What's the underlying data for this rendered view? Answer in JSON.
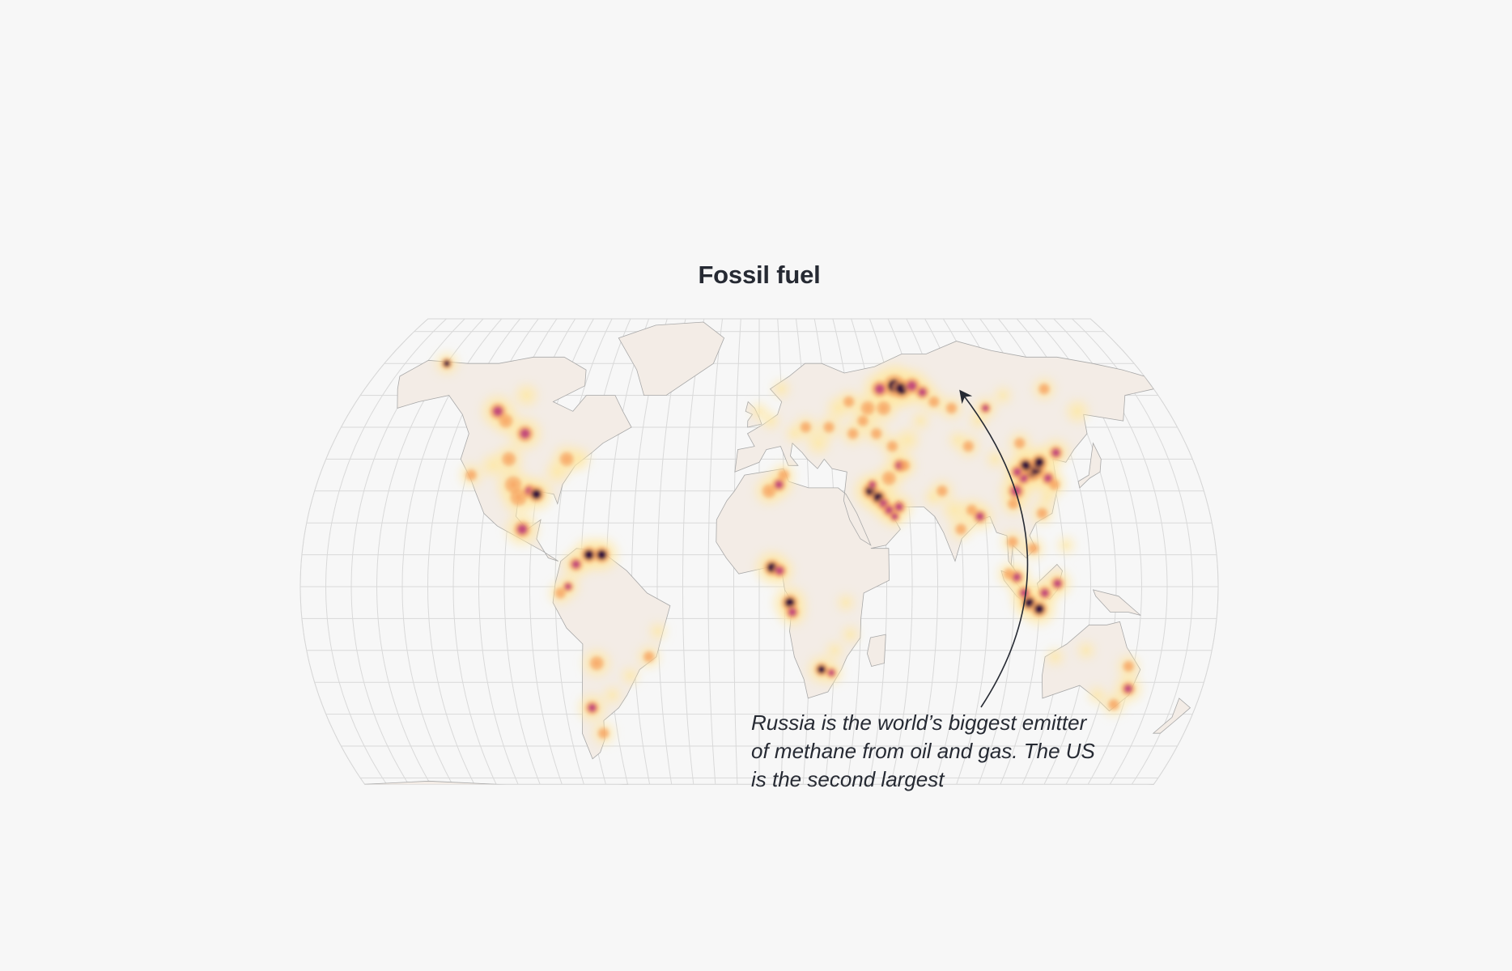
{
  "map": {
    "title": "Fossil fuel",
    "annotation": "Russia is the world’s biggest emitter of methane from oil and gas. The US is the second largest",
    "colors": {
      "background": "#f7f7f7",
      "land": "#f3ece6",
      "graticule": "#d9d9d9",
      "coast": "#9c9c9c",
      "heat_low": "#fde8a8",
      "heat_mid": "#f6a05c",
      "heat_high": "#c2487a",
      "heat_max": "#2a0d3a"
    }
  }
}
